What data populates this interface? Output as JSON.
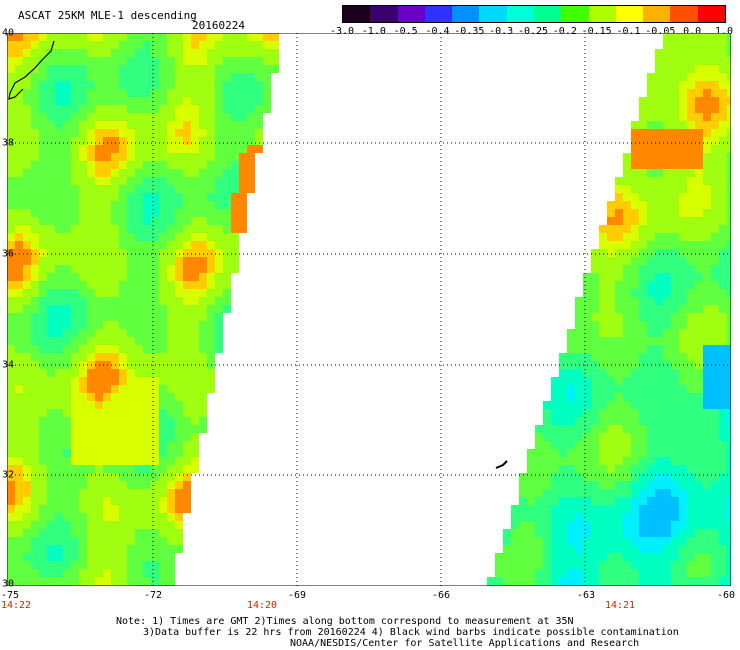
{
  "header": {
    "title": "ASCAT 25KM MLE-1 descending",
    "date": "20160224"
  },
  "colorbar": {
    "tick_labels": [
      "-3.0",
      "-1.0",
      "-0.5",
      "-0.4",
      "-0.35",
      "-0.3",
      "-0.25",
      "-0.2",
      "-0.15",
      "-0.1",
      "-0.05",
      "0.0",
      "1.0"
    ],
    "colors": [
      "#1a001a",
      "#3a0070",
      "#6a00c8",
      "#3030ff",
      "#0090ff",
      "#00d8ff",
      "#00ffd8",
      "#00ff90",
      "#40ff00",
      "#b0ff00",
      "#ffff00",
      "#ffb000",
      "#ff5000",
      "#ff0000"
    ]
  },
  "map": {
    "lon_range": [
      -75,
      -60
    ],
    "lat_range": [
      30,
      40
    ],
    "lon_ticks": [
      "-75",
      "-72",
      "-69",
      "-66",
      "-63",
      "-60"
    ],
    "lat_ticks": [
      "40",
      "38",
      "36",
      "34",
      "32",
      "30"
    ],
    "gridline_style": "dotted",
    "swaths": [
      {
        "side": "west",
        "time": "14:22"
      },
      {
        "side": "center",
        "time": "14:20"
      },
      {
        "side": "east",
        "time": "14:21"
      }
    ]
  },
  "notes": {
    "line1": "Note: 1) Times are GMT 2)Times along bottom correspond to measurement at 35N",
    "line2": "3)Data buffer is 22 hrs from 20160224 4) Black wind barbs indicate possible contamination",
    "line3": "NOAA/NESDIS/Center for Satellite Applications and Research"
  }
}
